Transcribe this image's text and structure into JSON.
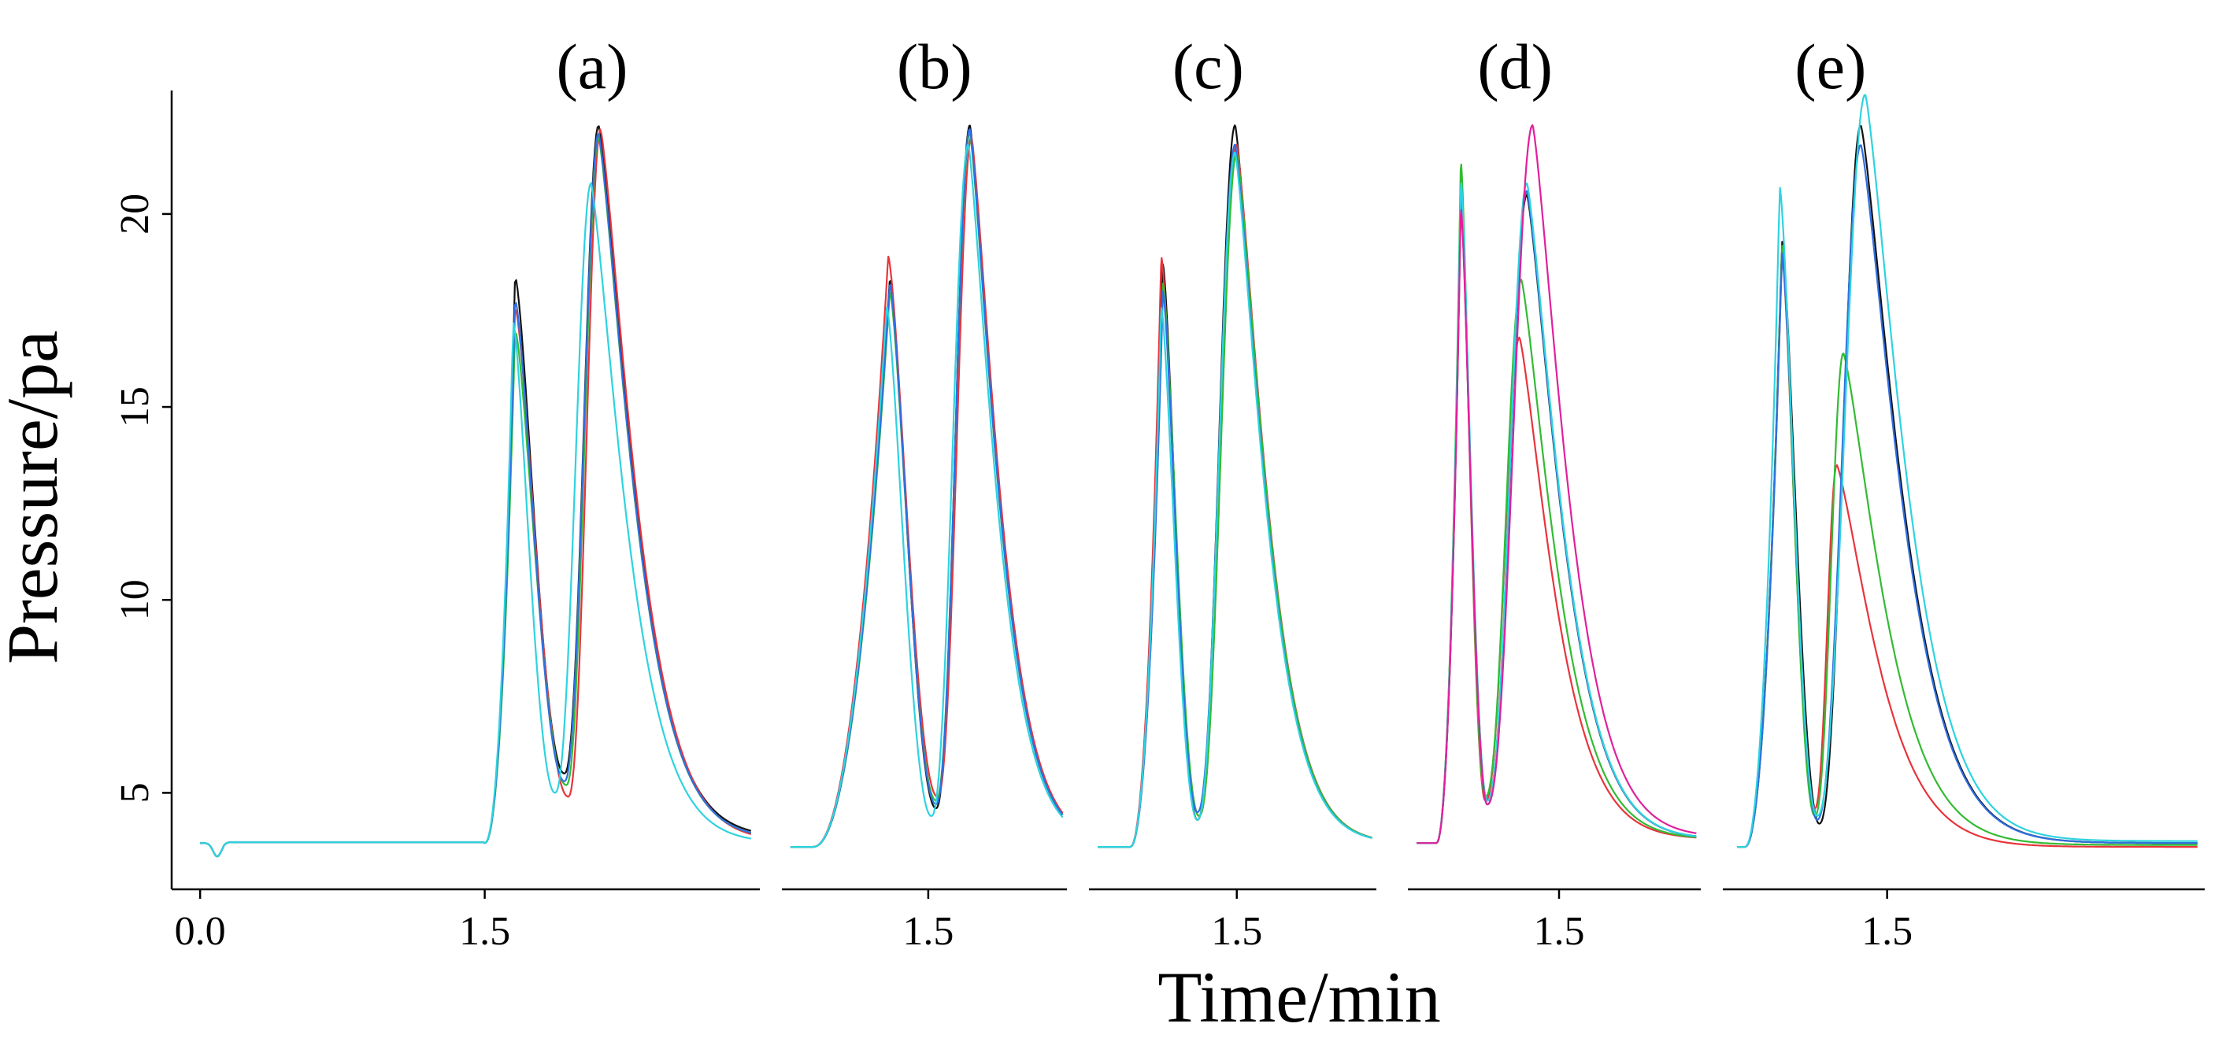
{
  "chart_data": {
    "type": "line",
    "ylabel": "Pressure/pa",
    "xlabel": "Time/min",
    "ylim": [
      2.5,
      23.2
    ],
    "yticks": [
      5,
      10,
      15,
      20
    ],
    "ytick_labels": [
      "5",
      "10",
      "15",
      "20"
    ],
    "colors": {
      "black": "#111111",
      "red": "#e8343c",
      "green": "#33bb33",
      "blue": "#2f6fe0",
      "cyan": "#2ed3df",
      "magenta": "#e0209c"
    },
    "panels": [
      {
        "label": "(a)",
        "xlim": [
          -0.15,
          2.95
        ],
        "xticks": [
          0.0,
          1.5
        ],
        "xtick_labels": [
          "0.0",
          "1.5"
        ],
        "baseline": 3.7,
        "start": 1.5,
        "dip": true,
        "series": [
          {
            "color": "black",
            "p1": 18.4,
            "t1": 1.66,
            "v": 5.5,
            "tv": 1.92,
            "p2": 22.3,
            "t2": 2.1,
            "tail": 3.85
          },
          {
            "color": "red",
            "p1": 17.6,
            "t1": 1.66,
            "v": 4.9,
            "tv": 1.94,
            "p2": 22.2,
            "t2": 2.11,
            "tail": 3.75
          },
          {
            "color": "green",
            "p1": 17.0,
            "t1": 1.66,
            "v": 5.2,
            "tv": 1.93,
            "p2": 22.0,
            "t2": 2.1,
            "tail": 3.8
          },
          {
            "color": "blue",
            "p1": 17.8,
            "t1": 1.66,
            "v": 5.3,
            "tv": 1.92,
            "p2": 22.1,
            "t2": 2.1,
            "tail": 3.8
          },
          {
            "color": "cyan",
            "p1": 17.2,
            "t1": 1.65,
            "v": 5.0,
            "tv": 1.87,
            "p2": 20.8,
            "t2": 2.06,
            "tail": 3.7
          }
        ]
      },
      {
        "label": "(b)",
        "xlim": [
          0.55,
          2.4
        ],
        "xticks": [
          1.5
        ],
        "xtick_labels": [
          "1.5"
        ],
        "baseline": 3.6,
        "start": 0.75,
        "dip": false,
        "series": [
          {
            "color": "black",
            "p1": 18.3,
            "t1": 1.25,
            "v": 4.6,
            "tv": 1.55,
            "p2": 22.3,
            "t2": 1.77,
            "tail": 3.7
          },
          {
            "color": "red",
            "p1": 18.9,
            "t1": 1.24,
            "v": 4.9,
            "tv": 1.56,
            "p2": 22.0,
            "t2": 1.78,
            "tail": 3.7
          },
          {
            "color": "green",
            "p1": 18.0,
            "t1": 1.25,
            "v": 4.8,
            "tv": 1.55,
            "p2": 22.1,
            "t2": 1.77,
            "tail": 3.7
          },
          {
            "color": "blue",
            "p1": 18.2,
            "t1": 1.25,
            "v": 4.7,
            "tv": 1.55,
            "p2": 22.2,
            "t2": 1.77,
            "tail": 3.7
          },
          {
            "color": "cyan",
            "p1": 17.6,
            "t1": 1.23,
            "v": 4.4,
            "tv": 1.52,
            "p2": 21.8,
            "t2": 1.76,
            "tail": 3.7
          }
        ]
      },
      {
        "label": "(c)",
        "xlim": [
          0.6,
          2.35
        ],
        "xticks": [
          1.5
        ],
        "xtick_labels": [
          "1.5"
        ],
        "baseline": 3.6,
        "start": 0.85,
        "dip": false,
        "series": [
          {
            "color": "black",
            "p1": 18.7,
            "t1": 1.05,
            "v": 4.3,
            "tv": 1.26,
            "p2": 22.3,
            "t2": 1.49,
            "tail": 3.7
          },
          {
            "color": "red",
            "p1": 18.9,
            "t1": 1.04,
            "v": 4.4,
            "tv": 1.27,
            "p2": 21.8,
            "t2": 1.5,
            "tail": 3.7
          },
          {
            "color": "green",
            "p1": 18.2,
            "t1": 1.05,
            "v": 4.4,
            "tv": 1.27,
            "p2": 21.6,
            "t2": 1.5,
            "tail": 3.7
          },
          {
            "color": "blue",
            "p1": 18.0,
            "t1": 1.05,
            "v": 4.5,
            "tv": 1.26,
            "p2": 21.8,
            "t2": 1.49,
            "tail": 3.7
          },
          {
            "color": "cyan",
            "p1": 17.6,
            "t1": 1.04,
            "v": 4.3,
            "tv": 1.26,
            "p2": 21.6,
            "t2": 1.49,
            "tail": 3.7
          }
        ]
      },
      {
        "label": "(d)",
        "xlim": [
          0.7,
          2.25
        ],
        "xticks": [
          1.5
        ],
        "xtick_labels": [
          "1.5"
        ],
        "baseline": 3.7,
        "start": 0.85,
        "dip": false,
        "series": [
          {
            "color": "black",
            "p1": 20.3,
            "t1": 0.98,
            "v": 4.8,
            "tv": 1.12,
            "p2": 20.5,
            "t2": 1.33,
            "tail": 3.8
          },
          {
            "color": "red",
            "p1": 21.0,
            "t1": 0.98,
            "v": 4.8,
            "tv": 1.11,
            "p2": 16.8,
            "t2": 1.29,
            "tail": 3.8
          },
          {
            "color": "green",
            "p1": 21.4,
            "t1": 0.98,
            "v": 4.9,
            "tv": 1.11,
            "p2": 18.3,
            "t2": 1.3,
            "tail": 3.8
          },
          {
            "color": "blue",
            "p1": 20.5,
            "t1": 0.98,
            "v": 4.7,
            "tv": 1.12,
            "p2": 20.6,
            "t2": 1.33,
            "tail": 3.8
          },
          {
            "color": "cyan",
            "p1": 20.9,
            "t1": 0.98,
            "v": 4.8,
            "tv": 1.12,
            "p2": 20.8,
            "t2": 1.33,
            "tail": 3.8
          },
          {
            "color": "magenta",
            "p1": 20.2,
            "t1": 0.98,
            "v": 4.7,
            "tv": 1.12,
            "p2": 22.3,
            "t2": 1.36,
            "tail": 3.85
          }
        ]
      },
      {
        "label": "(e)",
        "xlim": [
          0.75,
          2.95
        ],
        "xticks": [
          1.5
        ],
        "xtick_labels": [
          "1.5"
        ],
        "baseline": 3.6,
        "start": 0.85,
        "dip": false,
        "series": [
          {
            "color": "black",
            "p1": 19.3,
            "t1": 1.02,
            "v": 4.2,
            "tv": 1.19,
            "p2": 22.3,
            "t2": 1.38,
            "tail": 3.7
          },
          {
            "color": "red",
            "p1": 19.0,
            "t1": 1.02,
            "v": 4.6,
            "tv": 1.17,
            "p2": 13.5,
            "t2": 1.27,
            "tail": 3.6
          },
          {
            "color": "green",
            "p1": 19.2,
            "t1": 1.02,
            "v": 4.4,
            "tv": 1.17,
            "p2": 16.4,
            "t2": 1.3,
            "tail": 3.65
          },
          {
            "color": "blue",
            "p1": 19.0,
            "t1": 1.02,
            "v": 4.3,
            "tv": 1.18,
            "p2": 21.8,
            "t2": 1.38,
            "tail": 3.7
          },
          {
            "color": "cyan",
            "p1": 20.7,
            "t1": 1.01,
            "v": 4.4,
            "tv": 1.18,
            "p2": 23.1,
            "t2": 1.4,
            "tail": 3.75
          }
        ]
      }
    ]
  }
}
